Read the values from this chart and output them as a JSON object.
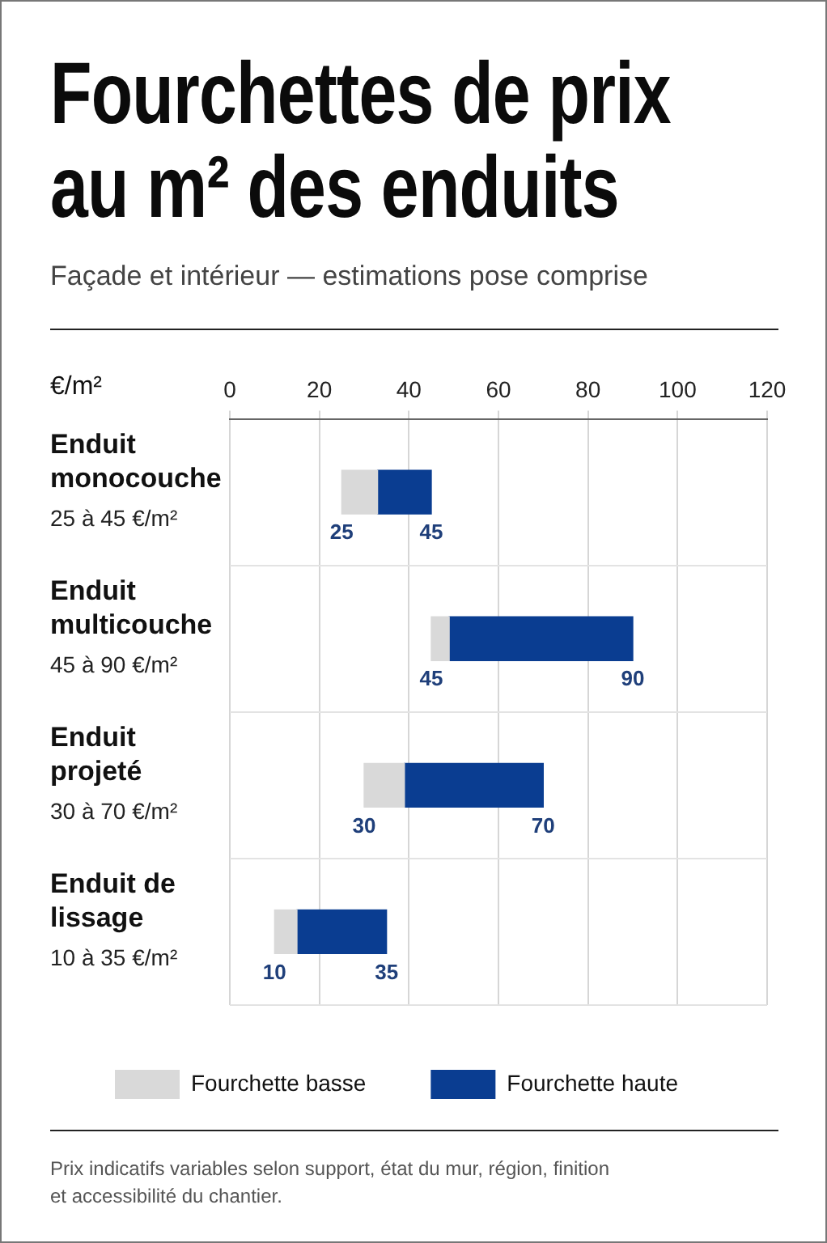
{
  "chart_data": {
    "type": "bar",
    "orientation": "horizontal",
    "title": "Fourchettes de prix au m² des enduits",
    "subtitle": "Façade et intérieur — estimations pose comprise",
    "xlabel": "€/m²",
    "categories": [
      "Enduit monocouche",
      "Enduit multicouche",
      "Enduit projeté",
      "Enduit de lissage"
    ],
    "series": [
      {
        "name": "Fourchette basse",
        "color": "#d9d9d9",
        "base": [
          25,
          45,
          30,
          10
        ],
        "values": [
          8,
          4,
          9,
          5
        ]
      },
      {
        "name": "Fourchette haute",
        "color": "#0a3d91",
        "base": [
          33,
          49,
          39,
          15
        ],
        "values": [
          12,
          41,
          31,
          20
        ]
      }
    ],
    "xlim": [
      0,
      120
    ],
    "xticks": [
      0,
      20,
      40,
      60,
      80,
      100,
      120
    ],
    "grid": true,
    "legend": "bottom",
    "annotations": [
      "25 à 45 €/m²",
      "45 à 90 €/m²",
      "30 à 70 €/m²",
      "10 à 35 €/m²",
      "25",
      "45",
      "45",
      "90",
      "30",
      "70",
      "10",
      "35",
      "Prix indicatifs variables selon support, état du mur, région, finition et accessibilité du chantier."
    ]
  }
}
